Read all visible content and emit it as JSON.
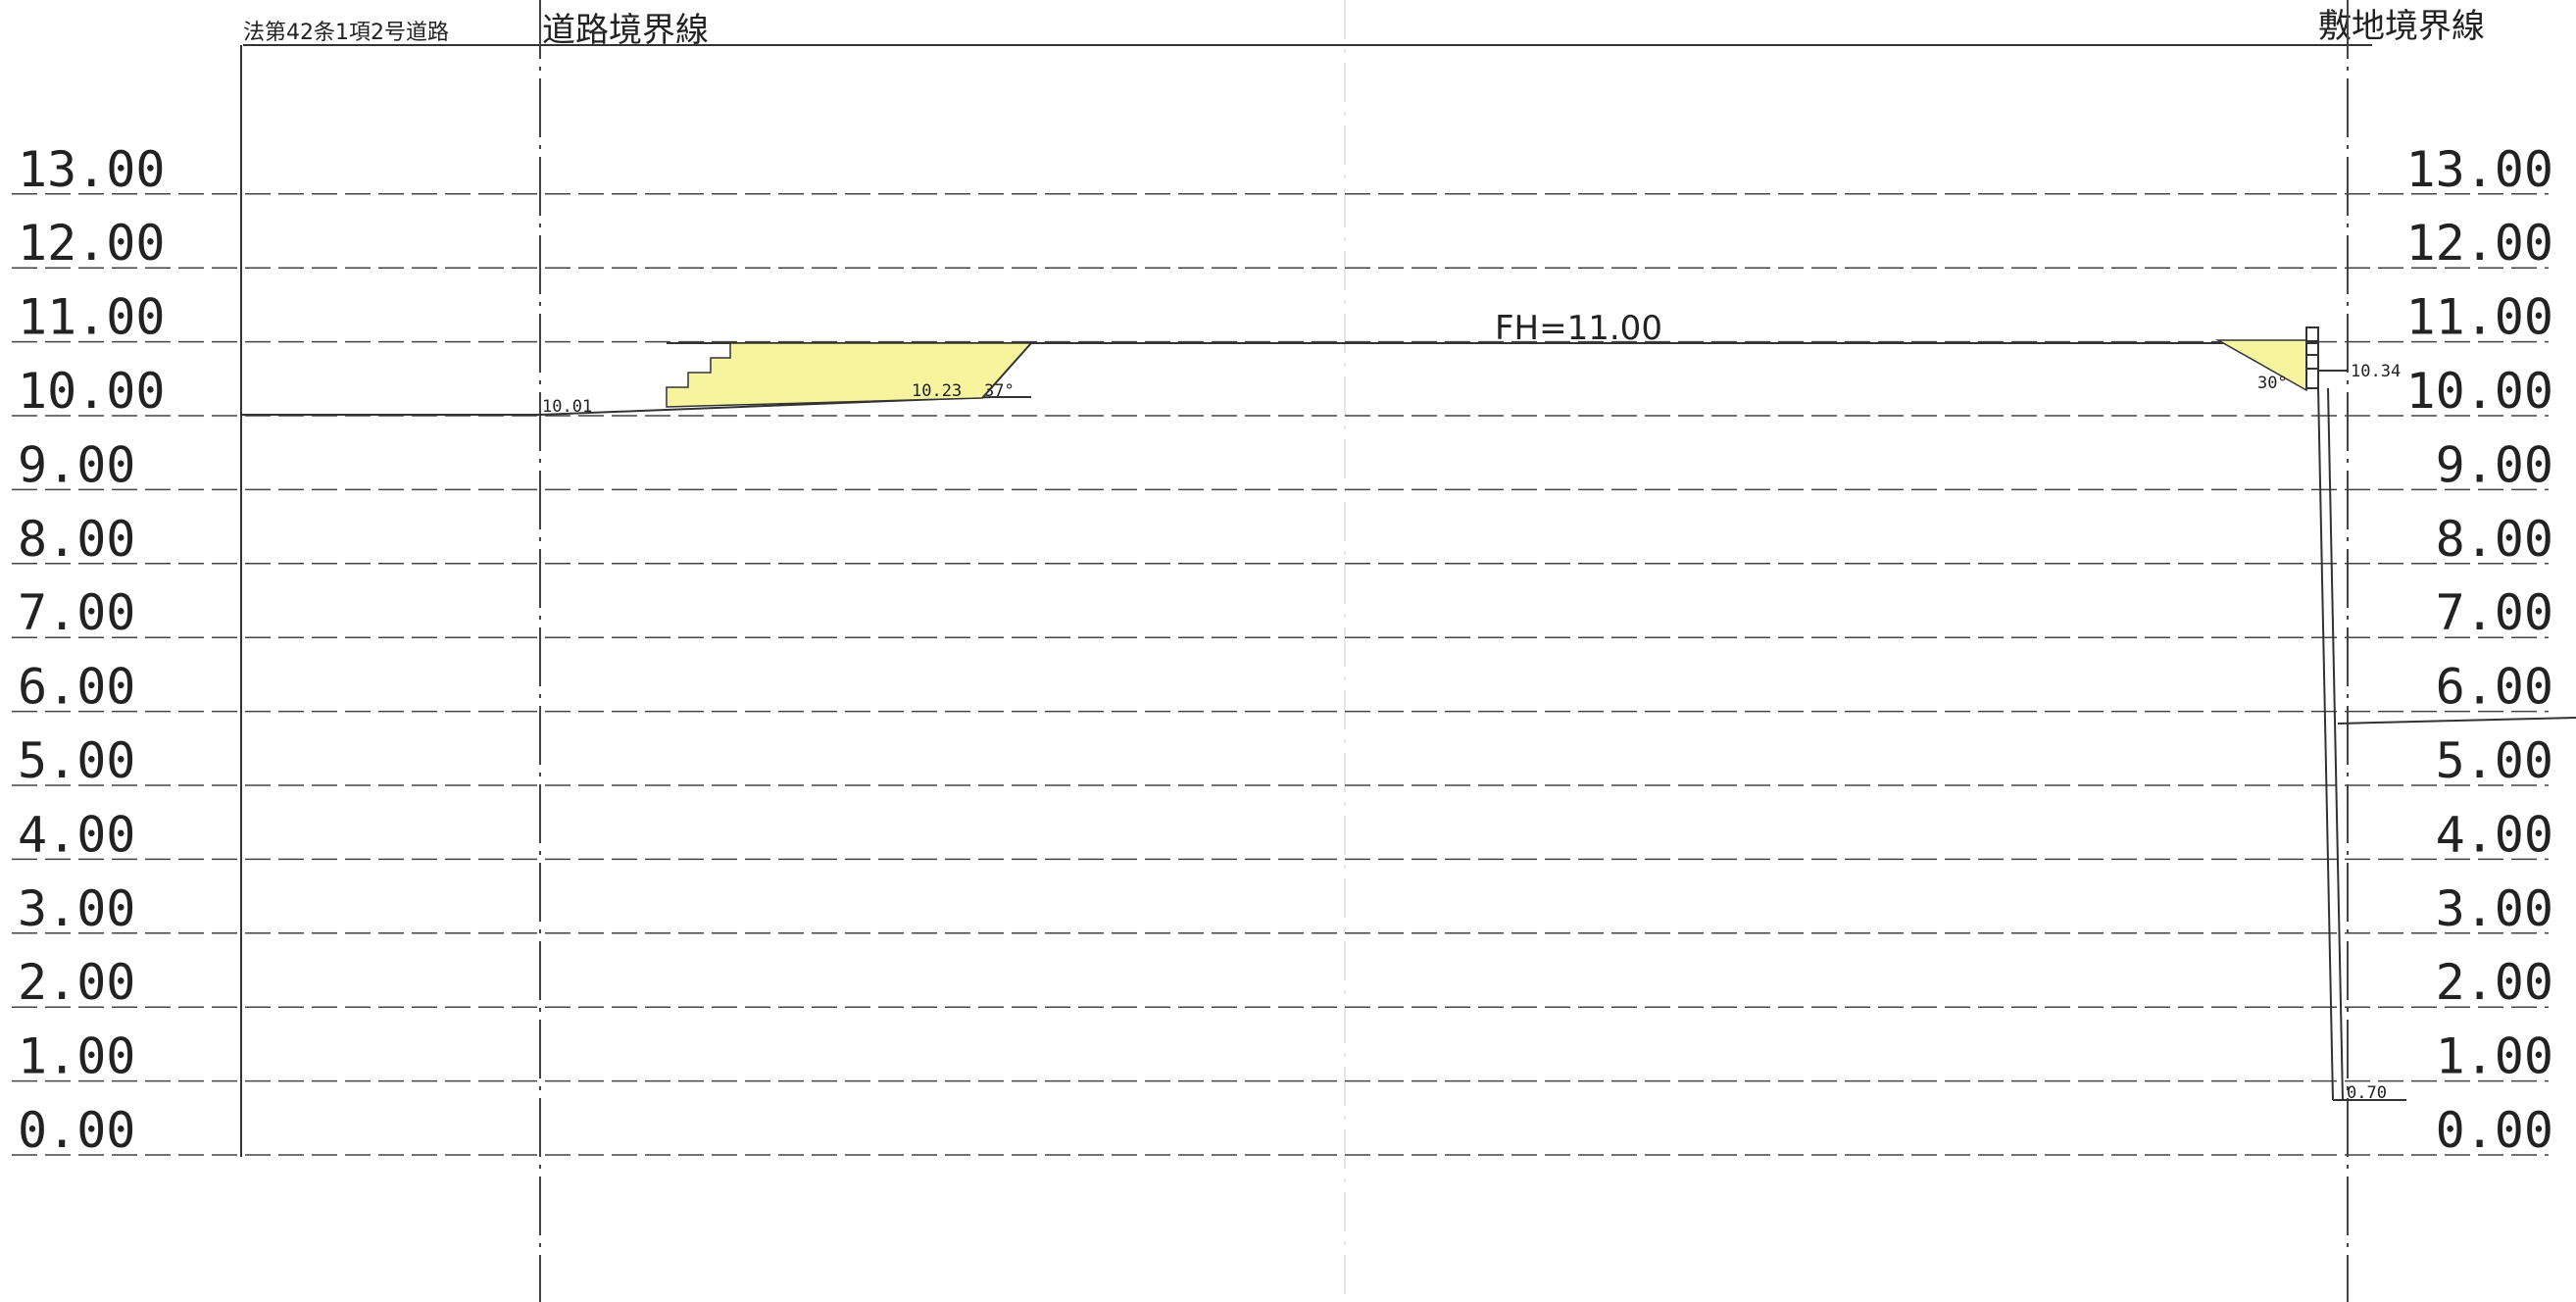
{
  "header": {
    "road_note": "法第42条1項2号道路",
    "road_boundary": "道路境界線",
    "site_boundary": "敷地境界線"
  },
  "levels": [
    "13.00",
    "12.00",
    "11.00",
    "10.00",
    "9.00",
    "8.00",
    "7.00",
    "6.00",
    "5.00",
    "4.00",
    "3.00",
    "2.00",
    "1.00",
    "0.00"
  ],
  "annotations": {
    "fh": "FH=11.00",
    "road_edge_level": "10.01",
    "left_slope_level": "10.23",
    "left_slope_angle": "37°",
    "right_slope_angle": "30°",
    "right_wall_top": "10.34",
    "right_bottom_level": "0.70"
  },
  "colors": {
    "ink": "#333333",
    "fill_yellow": "#f7f4a0"
  }
}
